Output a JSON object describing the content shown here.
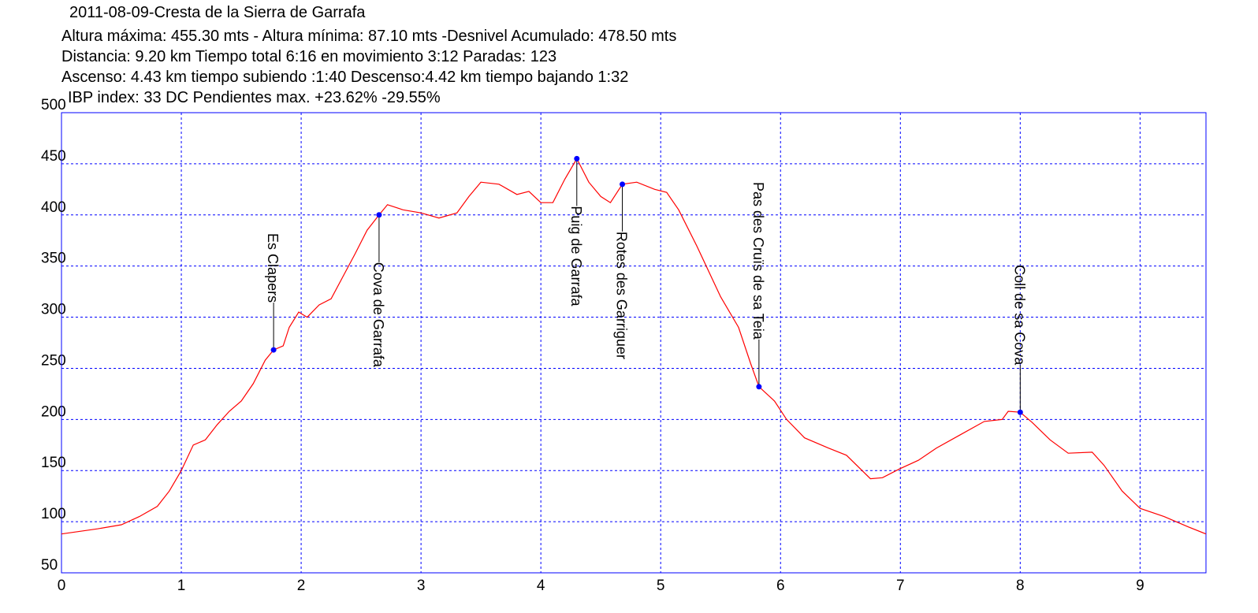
{
  "chart_data": {
    "type": "line",
    "title": "2011-08-09-Cresta de la Sierra de Garrafa",
    "subtitle_lines": [
      "Altura máxima: 455.30 mts - Altura mínima: 87.10 mts -Desnivel Acumulado: 478.50 mts",
      "Distancia: 9.20 km  Tiempo total 6:16  en movimiento 3:12 Paradas: 123",
      "Ascenso: 4.43 km  tiempo subiendo :1:40  Descenso:4.42 km tiempo bajando 1:32",
      "IBP index: 33 DC  Pendientes max. +23.62%  -29.55%"
    ],
    "x": [
      0,
      0.3,
      0.5,
      0.65,
      0.8,
      0.9,
      1.0,
      1.1,
      1.2,
      1.3,
      1.4,
      1.5,
      1.6,
      1.7,
      1.77,
      1.85,
      1.9,
      1.98,
      2.05,
      2.15,
      2.25,
      2.35,
      2.45,
      2.55,
      2.65,
      2.72,
      2.85,
      3.0,
      3.15,
      3.3,
      3.4,
      3.5,
      3.65,
      3.8,
      3.9,
      4.0,
      4.1,
      4.2,
      4.3,
      4.4,
      4.5,
      4.58,
      4.68,
      4.8,
      4.95,
      5.05,
      5.15,
      5.3,
      5.5,
      5.65,
      5.75,
      5.82,
      5.95,
      6.05,
      6.2,
      6.4,
      6.55,
      6.75,
      6.85,
      7.0,
      7.15,
      7.3,
      7.5,
      7.7,
      7.85,
      7.9,
      8.0,
      8.1,
      8.25,
      8.4,
      8.6,
      8.7,
      8.85,
      9.0,
      9.2,
      9.4,
      9.55
    ],
    "series": [
      {
        "color": "#ff0000",
        "values": [
          88,
          93,
          97,
          105,
          115,
          130,
          150,
          175,
          180,
          195,
          208,
          218,
          235,
          258,
          268,
          272,
          290,
          305,
          300,
          312,
          318,
          340,
          362,
          385,
          400,
          410,
          405,
          402,
          397,
          402,
          418,
          432,
          430,
          420,
          423,
          412,
          412,
          435,
          455,
          432,
          418,
          412,
          430,
          432,
          425,
          422,
          405,
          370,
          320,
          290,
          255,
          232,
          218,
          200,
          182,
          172,
          165,
          142,
          143,
          152,
          160,
          172,
          185,
          198,
          200,
          208,
          207,
          197,
          180,
          167,
          168,
          155,
          130,
          113,
          105,
          95,
          88
        ]
      }
    ],
    "waypoints": [
      {
        "label": "Es Clapers",
        "x": 1.77,
        "y": 268
      },
      {
        "label": "Cova de Garrafa",
        "x": 2.65,
        "y": 400
      },
      {
        "label": "Puig de Garrafa",
        "x": 4.3,
        "y": 455
      },
      {
        "label": "Rotes des Garriguer",
        "x": 4.68,
        "y": 430
      },
      {
        "label": "Pas des Cruïs de sa Teia",
        "x": 5.82,
        "y": 232
      },
      {
        "label": "Coll de sa Cova",
        "x": 8.0,
        "y": 207
      }
    ],
    "marker_color": "#0000ff",
    "xlim": [
      0,
      9.55
    ],
    "ylim": [
      50,
      500
    ],
    "xticks": [
      0,
      1,
      2,
      3,
      4,
      5,
      6,
      7,
      8,
      9
    ],
    "yticks": [
      50,
      100,
      150,
      200,
      250,
      300,
      350,
      400,
      450,
      500
    ],
    "grid": true
  }
}
